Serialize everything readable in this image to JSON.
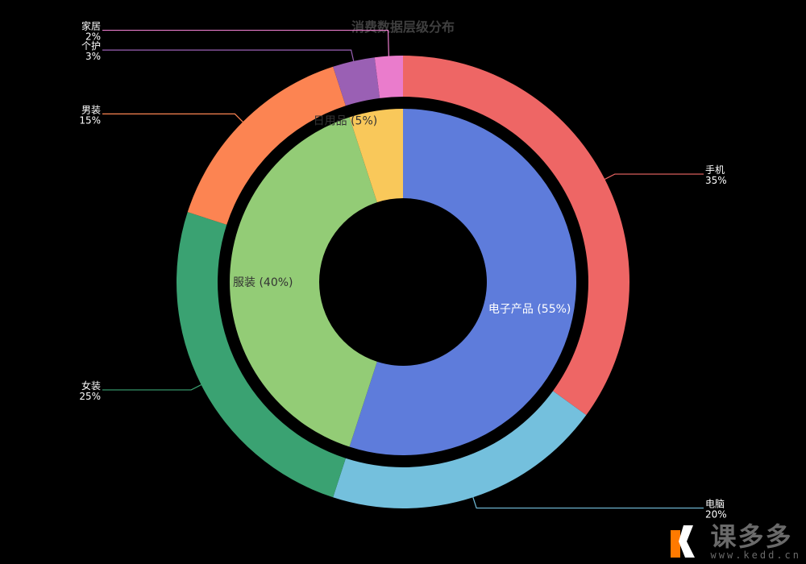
{
  "chart_data": {
    "type": "pie",
    "title": "消费数据层级分布",
    "inner": [
      {
        "name": "电子产品",
        "value": 55,
        "label": "电子产品 (55%)",
        "color": "#5e7cdb"
      },
      {
        "name": "服装",
        "value": 40,
        "label": "服装 (40%)",
        "color": "#93cc76"
      },
      {
        "name": "日用品",
        "value": 5,
        "label": "日用品 (5%)",
        "color": "#f9c85a"
      }
    ],
    "outer": [
      {
        "name": "手机",
        "value": 35,
        "pct": "35%",
        "color": "#ee6665"
      },
      {
        "name": "电脑",
        "value": 20,
        "pct": "20%",
        "color": "#74c0dd"
      },
      {
        "name": "女装",
        "value": 25,
        "pct": "25%",
        "color": "#3aa272"
      },
      {
        "name": "男装",
        "value": 15,
        "pct": "15%",
        "color": "#fc8452"
      },
      {
        "name": "个护",
        "value": 3,
        "pct": "3%",
        "color": "#9a60b4"
      },
      {
        "name": "家居",
        "value": 2,
        "pct": "2%",
        "color": "#ea7ccc"
      }
    ]
  },
  "watermark": {
    "text": "课多多",
    "url": "www.kedd.cn",
    "icon": "kedd-logo-icon"
  }
}
